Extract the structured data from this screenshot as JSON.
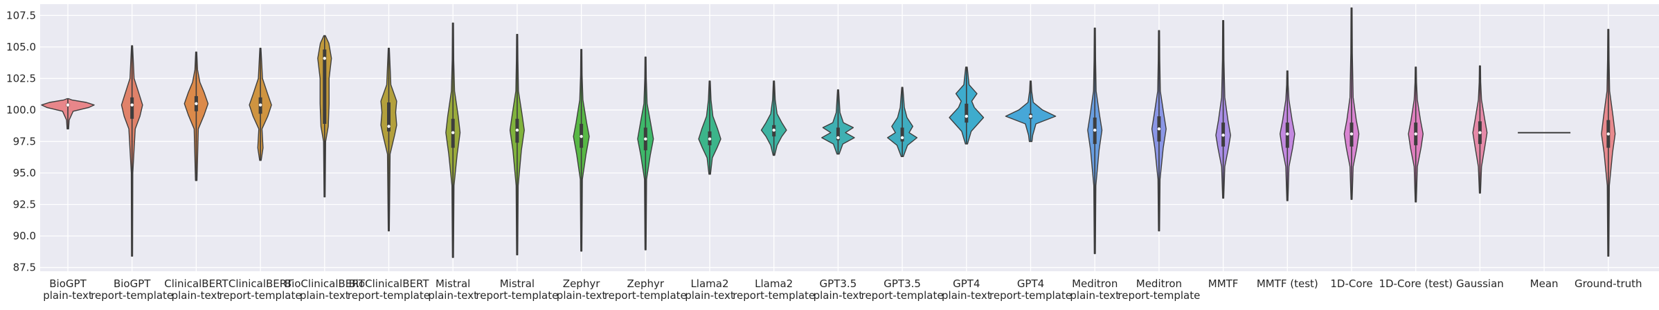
{
  "chart_data": {
    "type": "violin",
    "title": "",
    "xlabel": "",
    "ylabel": "",
    "ylim": [
      87.2,
      108.4
    ],
    "yticks": [
      "87.5",
      "90.0",
      "92.5",
      "95.0",
      "97.5",
      "100.0",
      "102.5",
      "105.0",
      "107.5"
    ],
    "ytick_values": [
      87.5,
      90.0,
      92.5,
      95.0,
      97.5,
      100.0,
      102.5,
      105.0,
      107.5
    ],
    "grid": true,
    "background": "#eaeaf2",
    "categories": [
      {
        "lines": [
          "BioGPT",
          "plain-text"
        ],
        "color": "#e8868a",
        "min": 98.5,
        "max": 100.9,
        "median": 100.4,
        "q1": 100.3,
        "q3": 100.5,
        "profile": [
          [
            98.5,
            0.03
          ],
          [
            99.2,
            0.05
          ],
          [
            99.9,
            0.2
          ],
          [
            100.2,
            0.8
          ],
          [
            100.4,
            1.0
          ],
          [
            100.6,
            0.7
          ],
          [
            100.8,
            0.15
          ],
          [
            100.9,
            0.03
          ]
        ]
      },
      {
        "lines": [
          "BioGPT",
          "report-template"
        ],
        "color": "#e0826a",
        "min": 88.4,
        "max": 105.1,
        "median": 100.4,
        "q1": 99.3,
        "q3": 101.0,
        "profile": [
          [
            88.4,
            0.02
          ],
          [
            95.0,
            0.03
          ],
          [
            98.5,
            0.12
          ],
          [
            99.5,
            0.3
          ],
          [
            100.4,
            0.4
          ],
          [
            101.2,
            0.28
          ],
          [
            102.5,
            0.08
          ],
          [
            105.1,
            0.02
          ]
        ]
      },
      {
        "lines": [
          "ClinicalBERT",
          "plain-text"
        ],
        "color": "#dc8a4a",
        "min": 94.4,
        "max": 104.6,
        "median": 100.5,
        "q1": 99.9,
        "q3": 101.1,
        "profile": [
          [
            94.4,
            0.03
          ],
          [
            98.5,
            0.08
          ],
          [
            99.6,
            0.3
          ],
          [
            100.5,
            0.45
          ],
          [
            101.4,
            0.3
          ],
          [
            102.2,
            0.14
          ],
          [
            103.2,
            0.05
          ],
          [
            104.6,
            0.02
          ]
        ]
      },
      {
        "lines": [
          "ClinicalBERT",
          "report-template"
        ],
        "color": "#cf9440",
        "min": 96.0,
        "max": 104.9,
        "median": 100.4,
        "q1": 99.7,
        "q3": 101.0,
        "profile": [
          [
            96.0,
            0.03
          ],
          [
            97.0,
            0.1
          ],
          [
            98.5,
            0.06
          ],
          [
            99.5,
            0.28
          ],
          [
            100.4,
            0.42
          ],
          [
            101.3,
            0.27
          ],
          [
            102.5,
            0.08
          ],
          [
            104.9,
            0.02
          ]
        ]
      },
      {
        "lines": [
          "BioClinicalBERT",
          "plain-text"
        ],
        "color": "#c19a3c",
        "min": 93.1,
        "max": 105.9,
        "median": 104.1,
        "q1": 98.9,
        "q3": 104.8,
        "profile": [
          [
            93.1,
            0.02
          ],
          [
            97.5,
            0.04
          ],
          [
            98.7,
            0.14
          ],
          [
            100.5,
            0.17
          ],
          [
            102.5,
            0.17
          ],
          [
            104.1,
            0.26
          ],
          [
            105.3,
            0.16
          ],
          [
            105.9,
            0.03
          ]
        ]
      },
      {
        "lines": [
          "BioClinicalBERT",
          "report-template"
        ],
        "color": "#b3a03c",
        "min": 90.4,
        "max": 104.9,
        "median": 98.7,
        "q1": 98.3,
        "q3": 100.6,
        "profile": [
          [
            90.4,
            0.02
          ],
          [
            96.5,
            0.05
          ],
          [
            98.0,
            0.22
          ],
          [
            98.8,
            0.3
          ],
          [
            99.8,
            0.26
          ],
          [
            100.7,
            0.3
          ],
          [
            102.0,
            0.08
          ],
          [
            104.9,
            0.02
          ]
        ]
      },
      {
        "lines": [
          "Mistral",
          "plain-text"
        ],
        "color": "#9aaa3c",
        "min": 88.3,
        "max": 106.9,
        "median": 98.2,
        "q1": 97.0,
        "q3": 99.3,
        "profile": [
          [
            88.3,
            0.02
          ],
          [
            94.0,
            0.04
          ],
          [
            96.5,
            0.16
          ],
          [
            98.2,
            0.27
          ],
          [
            99.5,
            0.2
          ],
          [
            101.5,
            0.06
          ],
          [
            104.0,
            0.03
          ],
          [
            106.9,
            0.02
          ]
        ]
      },
      {
        "lines": [
          "Mistral",
          "report-template"
        ],
        "color": "#80b33c",
        "min": 88.5,
        "max": 106.0,
        "median": 98.4,
        "q1": 97.4,
        "q3": 99.3,
        "profile": [
          [
            88.5,
            0.02
          ],
          [
            94.0,
            0.04
          ],
          [
            96.8,
            0.16
          ],
          [
            98.4,
            0.27
          ],
          [
            99.6,
            0.19
          ],
          [
            101.5,
            0.05
          ],
          [
            104.0,
            0.03
          ],
          [
            106.0,
            0.02
          ]
        ]
      },
      {
        "lines": [
          "Zephyr",
          "plain-text"
        ],
        "color": "#58b845",
        "min": 88.8,
        "max": 104.8,
        "median": 97.9,
        "q1": 97.0,
        "q3": 98.9,
        "profile": [
          [
            88.8,
            0.02
          ],
          [
            94.5,
            0.04
          ],
          [
            96.5,
            0.18
          ],
          [
            97.9,
            0.3
          ],
          [
            99.0,
            0.2
          ],
          [
            100.8,
            0.06
          ],
          [
            102.8,
            0.03
          ],
          [
            104.8,
            0.02
          ]
        ]
      },
      {
        "lines": [
          "Zephyr",
          "report-template"
        ],
        "color": "#3eb86a",
        "min": 88.9,
        "max": 104.2,
        "median": 97.7,
        "q1": 96.8,
        "q3": 98.6,
        "profile": [
          [
            88.9,
            0.02
          ],
          [
            94.5,
            0.04
          ],
          [
            96.4,
            0.18
          ],
          [
            97.7,
            0.3
          ],
          [
            98.9,
            0.2
          ],
          [
            100.5,
            0.06
          ],
          [
            102.5,
            0.03
          ],
          [
            104.2,
            0.02
          ]
        ]
      },
      {
        "lines": [
          "Llama2",
          "plain-text"
        ],
        "color": "#3cb58a",
        "min": 94.9,
        "max": 102.3,
        "median": 97.7,
        "q1": 97.2,
        "q3": 98.3,
        "profile": [
          [
            94.9,
            0.03
          ],
          [
            96.2,
            0.1
          ],
          [
            97.0,
            0.28
          ],
          [
            97.7,
            0.42
          ],
          [
            98.5,
            0.3
          ],
          [
            99.5,
            0.12
          ],
          [
            100.8,
            0.05
          ],
          [
            102.3,
            0.02
          ]
        ]
      },
      {
        "lines": [
          "Llama2",
          "report-template"
        ],
        "color": "#3db3a2",
        "min": 96.4,
        "max": 102.3,
        "median": 98.4,
        "q1": 97.9,
        "q3": 98.8,
        "profile": [
          [
            96.4,
            0.03
          ],
          [
            97.2,
            0.12
          ],
          [
            97.9,
            0.3
          ],
          [
            98.4,
            0.48
          ],
          [
            99.0,
            0.3
          ],
          [
            99.7,
            0.12
          ],
          [
            100.8,
            0.05
          ],
          [
            102.3,
            0.02
          ]
        ]
      },
      {
        "lines": [
          "GPT3.5",
          "plain-text"
        ],
        "color": "#3fb0b2",
        "min": 96.5,
        "max": 101.6,
        "median": 97.8,
        "q1": 97.6,
        "q3": 98.6,
        "profile": [
          [
            96.5,
            0.04
          ],
          [
            97.3,
            0.18
          ],
          [
            97.8,
            0.62
          ],
          [
            98.2,
            0.28
          ],
          [
            98.6,
            0.58
          ],
          [
            99.0,
            0.2
          ],
          [
            99.8,
            0.07
          ],
          [
            101.6,
            0.02
          ]
        ]
      },
      {
        "lines": [
          "GPT3.5",
          "report-template"
        ],
        "color": "#3fadc0",
        "min": 96.3,
        "max": 101.8,
        "median": 97.8,
        "q1": 97.5,
        "q3": 98.6,
        "profile": [
          [
            96.3,
            0.04
          ],
          [
            97.2,
            0.2
          ],
          [
            97.8,
            0.56
          ],
          [
            98.2,
            0.26
          ],
          [
            98.7,
            0.4
          ],
          [
            99.4,
            0.18
          ],
          [
            100.2,
            0.08
          ],
          [
            101.8,
            0.02
          ]
        ]
      },
      {
        "lines": [
          "GPT4",
          "plain-text"
        ],
        "color": "#3eaccd",
        "min": 97.3,
        "max": 103.4,
        "median": 99.5,
        "q1": 99.0,
        "q3": 100.5,
        "profile": [
          [
            97.3,
            0.04
          ],
          [
            98.3,
            0.18
          ],
          [
            99.4,
            0.65
          ],
          [
            100.2,
            0.3
          ],
          [
            100.7,
            0.2
          ],
          [
            101.3,
            0.4
          ],
          [
            102.0,
            0.1
          ],
          [
            103.4,
            0.03
          ]
        ]
      },
      {
        "lines": [
          "GPT4",
          "report-template"
        ],
        "color": "#47a7d8",
        "min": 97.5,
        "max": 102.3,
        "median": 99.5,
        "q1": 99.3,
        "q3": 99.7,
        "profile": [
          [
            97.5,
            0.05
          ],
          [
            98.0,
            0.08
          ],
          [
            98.9,
            0.2
          ],
          [
            99.5,
            0.95
          ],
          [
            100.0,
            0.45
          ],
          [
            100.6,
            0.1
          ],
          [
            101.5,
            0.04
          ],
          [
            102.3,
            0.02
          ]
        ]
      },
      {
        "lines": [
          "Meditron",
          "plain-text"
        ],
        "color": "#6a9ee0",
        "min": 88.6,
        "max": 106.5,
        "median": 98.4,
        "q1": 97.3,
        "q3": 99.4,
        "profile": [
          [
            88.6,
            0.02
          ],
          [
            94.0,
            0.04
          ],
          [
            96.8,
            0.16
          ],
          [
            98.4,
            0.27
          ],
          [
            99.6,
            0.18
          ],
          [
            101.5,
            0.05
          ],
          [
            104.0,
            0.03
          ],
          [
            106.5,
            0.02
          ]
        ]
      },
      {
        "lines": [
          "Meditron",
          "report-template"
        ],
        "color": "#8a96e6",
        "min": 90.4,
        "max": 106.3,
        "median": 98.5,
        "q1": 97.5,
        "q3": 99.5,
        "profile": [
          [
            90.4,
            0.02
          ],
          [
            94.5,
            0.04
          ],
          [
            97.0,
            0.16
          ],
          [
            98.5,
            0.27
          ],
          [
            99.7,
            0.18
          ],
          [
            101.5,
            0.05
          ],
          [
            104.0,
            0.03
          ],
          [
            106.3,
            0.02
          ]
        ]
      },
      {
        "lines": [
          "MMTF"
        ],
        "color": "#a98fe6",
        "min": 93.0,
        "max": 107.1,
        "median": 98.0,
        "q1": 97.1,
        "q3": 99.0,
        "profile": [
          [
            93.0,
            0.02
          ],
          [
            95.5,
            0.06
          ],
          [
            97.0,
            0.2
          ],
          [
            98.0,
            0.28
          ],
          [
            99.2,
            0.18
          ],
          [
            101.0,
            0.06
          ],
          [
            104.0,
            0.03
          ],
          [
            107.1,
            0.02
          ]
        ]
      },
      {
        "lines": [
          "MMTF (test)"
        ],
        "color": "#c389e0",
        "min": 92.8,
        "max": 103.1,
        "median": 98.1,
        "q1": 97.0,
        "q3": 99.0,
        "profile": [
          [
            92.8,
            0.02
          ],
          [
            95.5,
            0.06
          ],
          [
            97.0,
            0.2
          ],
          [
            98.1,
            0.28
          ],
          [
            99.2,
            0.18
          ],
          [
            100.8,
            0.06
          ],
          [
            102.0,
            0.03
          ],
          [
            103.1,
            0.02
          ]
        ]
      },
      {
        "lines": [
          "1D-Core"
        ],
        "color": "#d985d2",
        "min": 92.9,
        "max": 108.1,
        "median": 98.1,
        "q1": 97.1,
        "q3": 99.0,
        "profile": [
          [
            92.9,
            0.02
          ],
          [
            95.5,
            0.06
          ],
          [
            97.0,
            0.2
          ],
          [
            98.1,
            0.28
          ],
          [
            99.2,
            0.18
          ],
          [
            101.0,
            0.06
          ],
          [
            104.5,
            0.03
          ],
          [
            108.1,
            0.02
          ]
        ]
      },
      {
        "lines": [
          "1D-Core (test)"
        ],
        "color": "#e07fbf",
        "min": 92.7,
        "max": 103.4,
        "median": 98.1,
        "q1": 97.2,
        "q3": 99.0,
        "profile": [
          [
            92.7,
            0.02
          ],
          [
            95.5,
            0.06
          ],
          [
            97.0,
            0.2
          ],
          [
            98.1,
            0.28
          ],
          [
            99.2,
            0.18
          ],
          [
            100.8,
            0.06
          ],
          [
            102.2,
            0.03
          ],
          [
            103.4,
            0.02
          ]
        ]
      },
      {
        "lines": [
          "Gaussian"
        ],
        "color": "#e68aa8",
        "min": 93.4,
        "max": 103.5,
        "median": 98.2,
        "q1": 97.3,
        "q3": 99.1,
        "profile": [
          [
            93.4,
            0.02
          ],
          [
            95.5,
            0.06
          ],
          [
            97.0,
            0.18
          ],
          [
            98.2,
            0.27
          ],
          [
            99.3,
            0.18
          ],
          [
            100.8,
            0.06
          ],
          [
            102.2,
            0.03
          ],
          [
            103.5,
            0.02
          ]
        ]
      },
      {
        "lines": [
          "Mean"
        ],
        "color": "#e88a96",
        "constant": 98.2
      },
      {
        "lines": [
          "Ground-truth"
        ],
        "color": "#e88a8e",
        "min": 88.4,
        "max": 106.4,
        "median": 98.1,
        "q1": 97.0,
        "q3": 99.2,
        "profile": [
          [
            88.4,
            0.02
          ],
          [
            94.0,
            0.04
          ],
          [
            96.6,
            0.16
          ],
          [
            98.1,
            0.26
          ],
          [
            99.5,
            0.18
          ],
          [
            101.5,
            0.05
          ],
          [
            104.0,
            0.03
          ],
          [
            106.4,
            0.02
          ]
        ]
      }
    ]
  }
}
